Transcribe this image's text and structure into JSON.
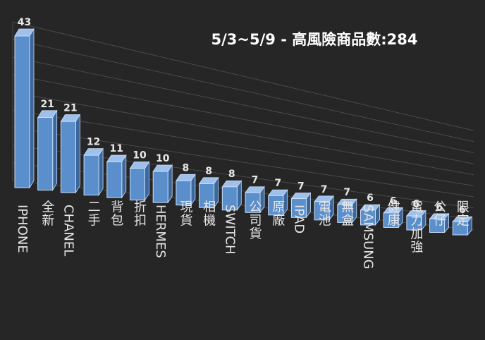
{
  "chart_data": {
    "type": "bar",
    "title": "5/3~5/9 - 高風險商品數:284",
    "categories": [
      "IPHONE",
      "全新",
      "CHANEL",
      "二手",
      "背包",
      "折扣",
      "HERMES",
      "現貨",
      "相機",
      "SWITCH",
      "公司貨",
      "原廠",
      "IPAD",
      "電池",
      "無盒",
      "SAMSUNG",
      "健康",
      "電力加強",
      "公仔",
      "限定"
    ],
    "values": [
      43,
      21,
      21,
      12,
      11,
      10,
      10,
      8,
      8,
      8,
      7,
      7,
      7,
      7,
      7,
      6,
      6,
      6,
      6,
      6
    ],
    "ylim": [
      0,
      45
    ],
    "grid": true,
    "legend": "none"
  },
  "colors": {
    "background": "#262626",
    "bar_face": "#5b8fcc",
    "bar_top": "#9ec0ea",
    "bar_side": "#3c679c",
    "bar_outline": "#c9defa",
    "grid": "#4a4a4a"
  }
}
